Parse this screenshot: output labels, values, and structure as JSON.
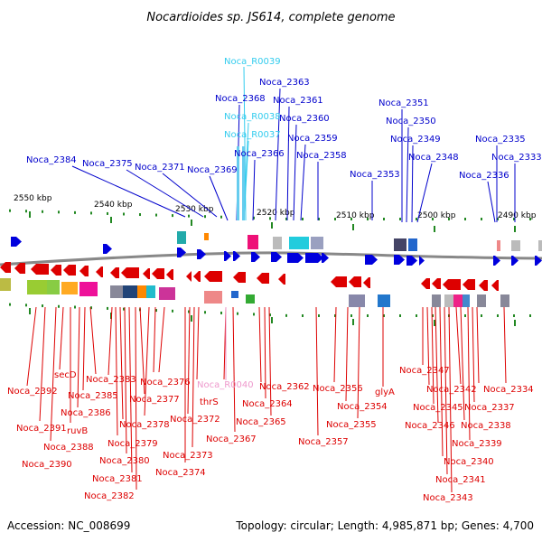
{
  "title": "Nocardioides sp. JS614, complete genome",
  "accession": "Accession: NC_008699",
  "summary": "Topology: circular; Length: 4,985,871 bp; Genes: 4,700",
  "colors": {
    "forward_gene": "#0000dd",
    "reverse_gene": "#dd0000",
    "forward_label": "#0000cc",
    "reverse_label": "#dd0000",
    "rna_forward": "#33ccee",
    "rna_reverse": "#ee99cc",
    "scale_tick": "#228822",
    "backbone": "#888888"
  },
  "scale": {
    "labels": [
      "2550 kbp",
      "2540 kbp",
      "2530 kbp",
      "2520 kbp",
      "2510 kbp",
      "2500 kbp",
      "2490 kbp"
    ]
  },
  "forward_labels": [
    "Noca_R0039",
    "Noca_2363",
    "Noca_2368",
    "Noca_2361",
    "Noca_R0038",
    "Noca_2360",
    "Noca_R0037",
    "Noca_2359",
    "Noca_2366",
    "Noca_2358",
    "Noca_2384",
    "Noca_2375",
    "Noca_2371",
    "Noca_2369",
    "Noca_2351",
    "Noca_2350",
    "Noca_2349",
    "Noca_2348",
    "Noca_2353",
    "Noca_2335",
    "Noca_2336",
    "Noca_2333"
  ],
  "reverse_labels": [
    "secD",
    "Noca_2383",
    "Noca_2376",
    "Noca_R0040",
    "Noca_2362",
    "Noca_2356",
    "glyA",
    "Noca_2347",
    "Noca_2392",
    "Noca_2385",
    "Noca_2377",
    "thrS",
    "Noca_2364",
    "Noca_2354",
    "Noca_2342",
    "Noca_2334",
    "Noca_2386",
    "Noca_2345",
    "Noca_2337",
    "Noca_2391",
    "ruvB",
    "Noca_2378",
    "Noca_2372",
    "Noca_2365",
    "Noca_2355",
    "Noca_2346",
    "Noca_2338",
    "Noca_2388",
    "Noca_2379",
    "Noca_2367",
    "Noca_2357",
    "Noca_2339",
    "Noca_2390",
    "Noca_2380",
    "Noca_2373",
    "Noca_2340",
    "Noca_2374",
    "Noca_2381",
    "Noca_2341",
    "Noca_2382",
    "Noca_2343"
  ]
}
